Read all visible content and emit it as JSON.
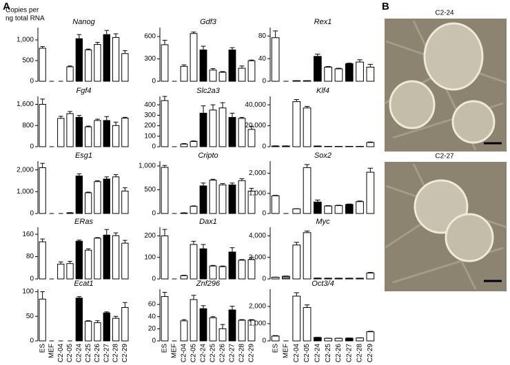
{
  "panel_labels": [
    "A",
    "B"
  ],
  "y_label": [
    "Copies per",
    "ng total RNA"
  ],
  "photos": [
    {
      "label": "C2-24"
    },
    {
      "label": "C2-27"
    }
  ],
  "chart_data": [
    {
      "type": "bar",
      "title": "Nanog",
      "ylim": [
        0,
        1300
      ],
      "yticks": [
        0,
        500,
        {
          "value": 1000,
          "label": "1,000"
        }
      ],
      "values": [
        800,
        0,
        0,
        350,
        1030,
        760,
        890,
        1130,
        1060,
        670
      ],
      "errors": [
        40,
        0,
        0,
        20,
        100,
        20,
        50,
        100,
        90,
        70
      ],
      "bar_colors": [
        "#fff",
        "#fff",
        "#fff",
        "#fff",
        "#000",
        "#fff",
        "#fff",
        "#000",
        "#fff",
        "#fff"
      ]
    },
    {
      "type": "bar",
      "title": "Gdf3",
      "ylim": [
        0,
        720
      ],
      "yticks": [
        0,
        300,
        600
      ],
      "values": [
        490,
        0,
        200,
        640,
        420,
        150,
        120,
        420,
        175,
        275
      ],
      "errors": [
        60,
        0,
        20,
        20,
        50,
        20,
        10,
        30,
        30,
        10
      ],
      "bar_colors": [
        "#fff",
        "#fff",
        "#fff",
        "#fff",
        "#000",
        "#fff",
        "#fff",
        "#000",
        "#fff",
        "#fff"
      ]
    },
    {
      "type": "bar",
      "title": "Rex1",
      "ylim": [
        0,
        95
      ],
      "yticks": [
        0,
        40,
        80
      ],
      "values": [
        77,
        0,
        1,
        1,
        44,
        25,
        22,
        31,
        34,
        25
      ],
      "errors": [
        12,
        0,
        0,
        0,
        4,
        1,
        1,
        1,
        4,
        5
      ],
      "bar_colors": [
        "#fff",
        "#fff",
        "#fff",
        "#fff",
        "#000",
        "#fff",
        "#fff",
        "#000",
        "#fff",
        "#fff"
      ]
    },
    {
      "type": "bar",
      "title": "Fgf4",
      "ylim": [
        0,
        1900
      ],
      "yticks": [
        0,
        800,
        {
          "value": 1600,
          "label": "1,600"
        }
      ],
      "values": [
        1600,
        0,
        1070,
        1250,
        1110,
        750,
        990,
        990,
        800,
        1080
      ],
      "errors": [
        200,
        0,
        80,
        80,
        70,
        30,
        50,
        150,
        130,
        30
      ],
      "bar_colors": [
        "#fff",
        "#fff",
        "#fff",
        "#fff",
        "#000",
        "#fff",
        "#fff",
        "#000",
        "#fff",
        "#fff"
      ]
    },
    {
      "type": "bar",
      "title": "Slc2a3",
      "ylim": [
        0,
        480
      ],
      "yticks": [
        0,
        100,
        200,
        300,
        400
      ],
      "values": [
        440,
        0,
        25,
        50,
        320,
        350,
        370,
        280,
        270,
        165
      ],
      "errors": [
        40,
        0,
        5,
        5,
        70,
        50,
        50,
        40,
        10,
        30
      ],
      "bar_colors": [
        "#fff",
        "#fff",
        "#fff",
        "#fff",
        "#000",
        "#fff",
        "#fff",
        "#000",
        "#fff",
        "#fff"
      ]
    },
    {
      "type": "bar",
      "title": "Klf4",
      "ylim": [
        0,
        48000
      ],
      "yticks": [
        0,
        {
          "value": 20000,
          "label": "20,000"
        },
        {
          "value": 40000,
          "label": "40,000"
        }
      ],
      "values": [
        600,
        600,
        43000,
        37000,
        600,
        300,
        300,
        300,
        300,
        4000
      ],
      "errors": [
        200,
        200,
        2000,
        1500,
        100,
        50,
        50,
        50,
        50,
        500
      ],
      "bar_colors": [
        "#fff",
        "#fff",
        "#fff",
        "#fff",
        "#000",
        "#fff",
        "#fff",
        "#000",
        "#fff",
        "#fff"
      ]
    },
    {
      "type": "bar",
      "title": "Esg1",
      "ylim": [
        0,
        2400
      ],
      "yticks": [
        0,
        {
          "value": 1000,
          "label": "1,000"
        },
        {
          "value": 2000,
          "label": "2,000"
        }
      ],
      "values": [
        2100,
        0,
        0,
        30,
        1720,
        950,
        1460,
        1580,
        1680,
        1030
      ],
      "errors": [
        200,
        0,
        0,
        10,
        100,
        30,
        40,
        100,
        100,
        150
      ],
      "bar_colors": [
        "#fff",
        "#fff",
        "#fff",
        "#fff",
        "#000",
        "#fff",
        "#fff",
        "#000",
        "#fff",
        "#fff"
      ]
    },
    {
      "type": "bar",
      "title": "Cripto",
      "ylim": [
        0,
        1100
      ],
      "yticks": [
        0,
        500,
        {
          "value": 1000,
          "label": "1,000"
        }
      ],
      "values": [
        970,
        0,
        10,
        150,
        580,
        700,
        600,
        600,
        690,
        470
      ],
      "errors": [
        40,
        0,
        5,
        10,
        60,
        20,
        30,
        40,
        40,
        60
      ],
      "bar_colors": [
        "#fff",
        "#fff",
        "#fff",
        "#fff",
        "#000",
        "#fff",
        "#fff",
        "#000",
        "#fff",
        "#fff"
      ]
    },
    {
      "type": "bar",
      "title": "Sox2",
      "ylim": [
        0,
        2600
      ],
      "yticks": [
        0,
        {
          "value": 1000,
          "label": "1,000"
        },
        {
          "value": 2000,
          "label": "2,000"
        }
      ],
      "values": [
        880,
        0,
        230,
        2280,
        570,
        370,
        390,
        450,
        590,
        2050
      ],
      "errors": [
        20,
        0,
        10,
        150,
        100,
        20,
        20,
        20,
        30,
        200
      ],
      "bar_colors": [
        "#fff",
        "#fff",
        "#fff",
        "#fff",
        "#000",
        "#fff",
        "#fff",
        "#000",
        "#fff",
        "#fff"
      ]
    },
    {
      "type": "bar",
      "title": "ERas",
      "ylim": [
        0,
        185
      ],
      "yticks": [
        0,
        80,
        160
      ],
      "values": [
        133,
        0,
        53,
        55,
        135,
        103,
        146,
        157,
        155,
        128
      ],
      "errors": [
        10,
        0,
        8,
        8,
        4,
        5,
        2,
        20,
        10,
        10
      ],
      "bar_colors": [
        "#fff",
        "#fff",
        "#fff",
        "#fff",
        "#000",
        "#fff",
        "#fff",
        "#000",
        "#fff",
        "#fff"
      ]
    },
    {
      "type": "bar",
      "title": "Dax1",
      "ylim": [
        0,
        240
      ],
      "yticks": [
        0,
        100,
        200
      ],
      "values": [
        200,
        0,
        15,
        160,
        140,
        60,
        57,
        125,
        87,
        90
      ],
      "errors": [
        30,
        0,
        2,
        15,
        20,
        3,
        3,
        20,
        3,
        10
      ],
      "bar_colors": [
        "#fff",
        "#fff",
        "#fff",
        "#fff",
        "#000",
        "#fff",
        "#fff",
        "#000",
        "#fff",
        "#fff"
      ]
    },
    {
      "type": "bar",
      "title": "Myc",
      "ylim": [
        0,
        4800
      ],
      "yticks": [
        0,
        {
          "value": 2000,
          "label": "2,000"
        },
        {
          "value": 4000,
          "label": "4,000"
        }
      ],
      "values": [
        150,
        250,
        3150,
        4300,
        70,
        60,
        60,
        60,
        60,
        550
      ],
      "errors": [
        20,
        20,
        250,
        150,
        10,
        10,
        10,
        10,
        10,
        50
      ],
      "bar_colors": [
        "#fff",
        "#777",
        "#fff",
        "#fff",
        "#000",
        "#fff",
        "#fff",
        "#000",
        "#fff",
        "#fff"
      ]
    },
    {
      "type": "bar",
      "title": "Ecat1",
      "ylim": [
        0,
        105
      ],
      "yticks": [
        0,
        50,
        100
      ],
      "categories": [
        "ES",
        "MEF",
        "C2-04",
        "C2-05",
        "C2-24",
        "C2-25",
        "C2-26",
        "C2-27",
        "C2-28",
        "C2-29"
      ],
      "values": [
        85,
        0,
        0,
        0,
        87,
        40,
        37,
        57,
        46,
        68
      ],
      "errors": [
        15,
        0,
        0,
        0,
        3,
        1,
        4,
        2,
        4,
        10
      ],
      "bar_colors": [
        "#fff",
        "#fff",
        "#fff",
        "#fff",
        "#000",
        "#fff",
        "#fff",
        "#000",
        "#fff",
        "#fff"
      ]
    },
    {
      "type": "bar",
      "title": "Znf296",
      "ylim": [
        0,
        85
      ],
      "yticks": [
        0,
        20,
        40,
        60
      ],
      "categories": [
        "ES",
        "MEF",
        "C2-04",
        "C2-05",
        "C2-24",
        "C2-25",
        "C2-26",
        "C2-27",
        "C2-28",
        "C2-29"
      ],
      "values": [
        73,
        0,
        33,
        68,
        53,
        38,
        20,
        51,
        34,
        34
      ],
      "errors": [
        7,
        0,
        2,
        7,
        5,
        2,
        7,
        6,
        1,
        1
      ],
      "bar_colors": [
        "#fff",
        "#fff",
        "#fff",
        "#fff",
        "#000",
        "#fff",
        "#fff",
        "#000",
        "#fff",
        "#fff"
      ]
    },
    {
      "type": "bar",
      "title": "Oct3/4",
      "ylim": [
        0,
        3000
      ],
      "yticks": [
        0,
        {
          "value": 1000,
          "label": "1,000"
        },
        {
          "value": 2000,
          "label": "2,000"
        }
      ],
      "categories": [
        "ES",
        "MEF",
        "C2-04",
        "C2-05",
        "C2-24",
        "C2-25",
        "C2-26",
        "C2-27",
        "C2-28",
        "C2-29"
      ],
      "values": [
        280,
        0,
        2600,
        1940,
        200,
        150,
        150,
        160,
        170,
        530
      ],
      "errors": [
        30,
        0,
        200,
        150,
        10,
        10,
        10,
        10,
        10,
        30
      ],
      "bar_colors": [
        "#fff",
        "#fff",
        "#fff",
        "#fff",
        "#000",
        "#fff",
        "#fff",
        "#000",
        "#fff",
        "#fff"
      ]
    }
  ]
}
